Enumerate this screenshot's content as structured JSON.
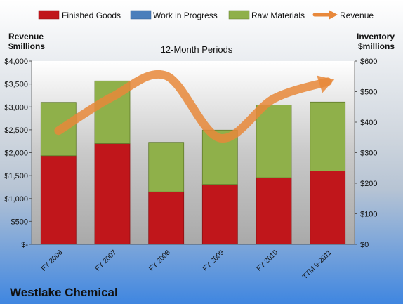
{
  "chart_data": {
    "type": "bar",
    "stacked": true,
    "company": "Westlake Chemical",
    "subtitle": "12-Month Periods",
    "left_axis_label": [
      "Revenue",
      "$millions"
    ],
    "right_axis_label": [
      "Inventory",
      "$millions"
    ],
    "categories": [
      "FY 2006",
      "FY 2007",
      "FY 2008",
      "FY 2009",
      "FY 2010",
      "TTM 9-2011"
    ],
    "left_ticks": [
      "$-",
      "$500",
      "$1,000",
      "$1,500",
      "$2,000",
      "$2,500",
      "$3,000",
      "$3,500",
      "$4,000"
    ],
    "right_ticks": [
      "$0",
      "$100",
      "$200",
      "$300",
      "$400",
      "$500",
      "$600"
    ],
    "ylim_left": [
      0,
      4000
    ],
    "ylim_right": [
      0,
      600
    ],
    "legend_position": "top",
    "grid": false,
    "series": [
      {
        "name": "Finished Goods",
        "axis": "right",
        "color": "#c0161b",
        "values": [
          290,
          330,
          172,
          196,
          218,
          240
        ]
      },
      {
        "name": "Work in Progress",
        "axis": "right",
        "color": "#4a7ebb",
        "values": [
          0,
          0,
          0,
          0,
          0,
          0
        ]
      },
      {
        "name": "Raw Materials",
        "axis": "right",
        "color": "#8fb04a",
        "values": [
          175,
          205,
          162,
          178,
          238,
          226
        ]
      },
      {
        "name": "Revenue",
        "axis": "left",
        "kind": "line",
        "color": "#e8883a",
        "values": [
          2480,
          3220,
          3680,
          2320,
          3180,
          3550
        ]
      }
    ]
  }
}
